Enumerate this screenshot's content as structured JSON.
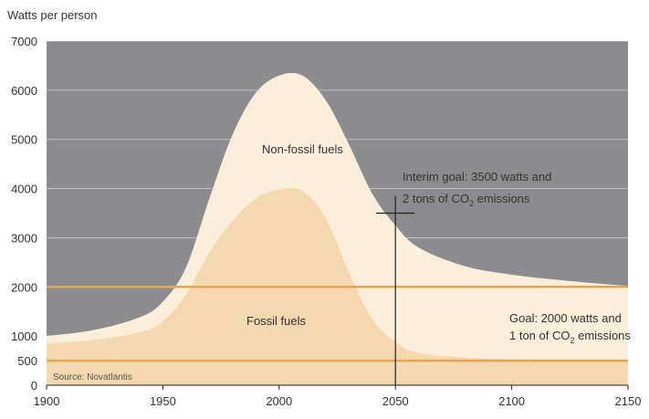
{
  "chart_data": {
    "type": "area",
    "ylabel": "Watts per person",
    "xlim": [
      1900,
      2150
    ],
    "ylim": [
      0,
      7000
    ],
    "x_ticks": [
      "1900",
      "1950",
      "2000",
      "2050",
      "2100",
      "2150"
    ],
    "y_ticks": [
      "0",
      "500",
      "1000",
      "2000",
      "3000",
      "4000",
      "5000",
      "6000",
      "7000"
    ],
    "y_tick_values": [
      0,
      500,
      1000,
      2000,
      3000,
      4000,
      5000,
      6000,
      7000
    ],
    "grid": true,
    "colors": {
      "background": "#8c8b8d",
      "non_fossil": "#fbefdc",
      "fossil": "#f3d8b0",
      "goal_lines": "#e8a550",
      "marker": "#222222"
    },
    "series": [
      {
        "name": "Non-fossil fuels",
        "x": [
          1900,
          1920,
          1940,
          1950,
          1960,
          1970,
          1980,
          1990,
          2000,
          2010,
          2020,
          2030,
          2040,
          2050,
          2060,
          2080,
          2100,
          2125,
          2150
        ],
        "values": [
          1000,
          1120,
          1380,
          1700,
          2400,
          3800,
          5100,
          5950,
          6300,
          6300,
          5800,
          4900,
          3900,
          3250,
          2800,
          2420,
          2250,
          2120,
          2020
        ]
      },
      {
        "name": "Fossil fuels",
        "x": [
          1900,
          1920,
          1940,
          1950,
          1960,
          1970,
          1980,
          1990,
          2000,
          2010,
          2020,
          2030,
          2040,
          2050,
          2060,
          2080,
          2100,
          2125,
          2150
        ],
        "values": [
          850,
          920,
          1080,
          1300,
          1850,
          2700,
          3350,
          3800,
          3980,
          3950,
          3400,
          2300,
          1350,
          880,
          660,
          560,
          530,
          515,
          510
        ]
      }
    ],
    "goal_lines": [
      2000,
      500
    ],
    "interim_marker": {
      "x": 2050,
      "y": 3500
    },
    "annotations": {
      "non_fossil": "Non-fossil fuels",
      "fossil": "Fossil fuels",
      "interim_line1": "Interim goal: 3500 watts and",
      "interim_line2_pre": "2 tons of CO",
      "interim_line2_sub": "2",
      "interim_line2_post": " emissions",
      "goal_line1": "Goal: 2000 watts and",
      "goal_line2_pre": "1 ton of CO",
      "goal_line2_sub": "2",
      "goal_line2_post": " emissions",
      "source": "Source: Novatlantis"
    }
  }
}
